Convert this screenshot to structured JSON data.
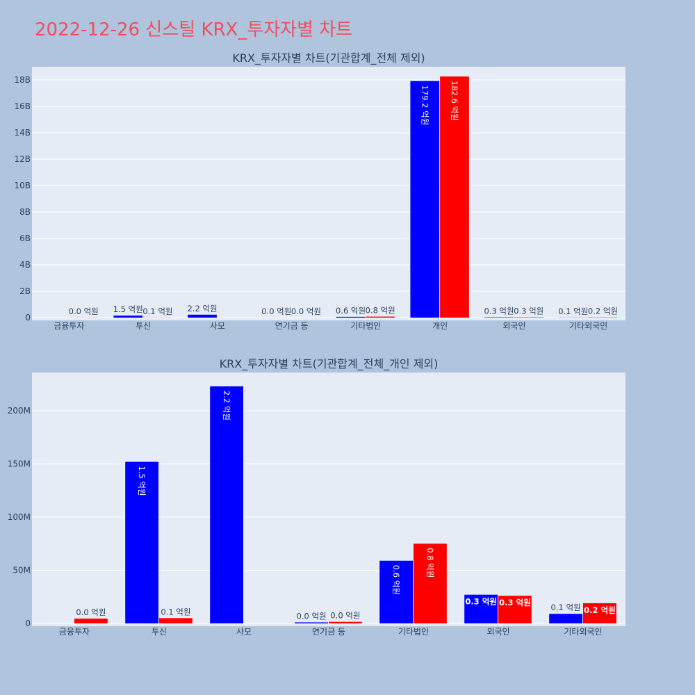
{
  "page": {
    "title": "2022-12-26 신스틸 KRX_투자자별 차트"
  },
  "colors": {
    "background": "#b0c4de",
    "plot_background": "#e5ecf6",
    "title": "#ef4e5f",
    "series_blue": "#0000ff",
    "series_red": "#ff0000",
    "text": "#2a3f5f"
  },
  "chart_data": [
    {
      "type": "bar",
      "title": "KRX_투자자별 차트(기관합계_전체 제외)",
      "categories": [
        "금융투자",
        "투신",
        "사모",
        "연기금 등",
        "기타법인",
        "개인",
        "외국인",
        "기타외국인"
      ],
      "series": [
        {
          "color": "#0000ff",
          "values": [
            0,
            152000000,
            223000000,
            1000000,
            59000000,
            17920000000,
            27000000,
            9000000
          ],
          "labels": [
            "",
            "1.5 억원",
            "2.2 억원",
            "0.0 억원",
            "0.6 억원",
            "179.2 억원",
            "0.3 억원",
            "0.1 억원"
          ]
        },
        {
          "color": "#ff0000",
          "values": [
            4500000,
            5000000,
            0,
            1500000,
            75000000,
            18260000000,
            26000000,
            19000000
          ],
          "labels": [
            "0.0 억원",
            "0.1 억원",
            "",
            "0.0 억원",
            "0.8 억원",
            "182.6 억원",
            "0.3 억원",
            "0.2 억원"
          ]
        }
      ],
      "yticks": [
        0,
        2000000000,
        4000000000,
        6000000000,
        8000000000,
        10000000000,
        12000000000,
        14000000000,
        16000000000,
        18000000000
      ],
      "ytick_labels": [
        "0",
        "2B",
        "4B",
        "6B",
        "8B",
        "10B",
        "12B",
        "14B",
        "16B",
        "18B"
      ],
      "ylim": [
        0,
        19000000000
      ],
      "grid": true,
      "legend": "none"
    },
    {
      "type": "bar",
      "title": "KRX_투자자별 차트(기관합계_전체_개인 제외)",
      "categories": [
        "금융투자",
        "투신",
        "사모",
        "연기금 등",
        "기타법인",
        "외국인",
        "기타외국인"
      ],
      "series": [
        {
          "color": "#0000ff",
          "values": [
            0,
            152000000,
            223000000,
            1000000,
            59000000,
            27000000,
            9000000
          ],
          "labels": [
            "",
            "1.5 억원",
            "2.2 억원",
            "0.0 억원",
            "0.6 억원",
            "0.3 억원",
            "0.1 억원"
          ]
        },
        {
          "color": "#ff0000",
          "values": [
            4500000,
            5000000,
            0,
            1500000,
            75000000,
            26000000,
            19000000
          ],
          "labels": [
            "0.0 억원",
            "0.1 억원",
            "",
            "0.0 억원",
            "0.8 억원",
            "0.3 억원",
            "0.2 억원"
          ]
        }
      ],
      "yticks": [
        0,
        50000000,
        100000000,
        150000000,
        200000000
      ],
      "ytick_labels": [
        "0",
        "50M",
        "100M",
        "150M",
        "200M"
      ],
      "ylim": [
        0,
        236000000
      ],
      "grid": true,
      "legend": "none"
    }
  ]
}
